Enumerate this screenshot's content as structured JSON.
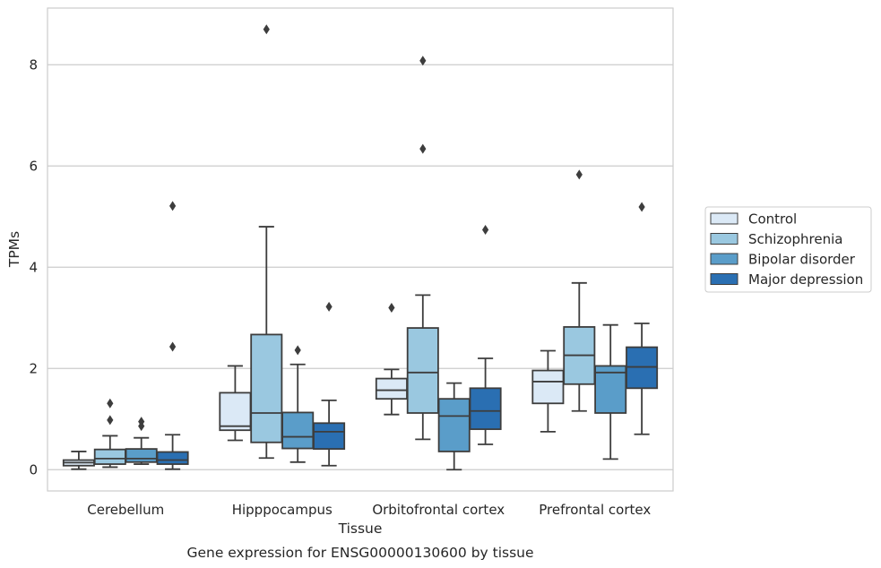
{
  "caption": "Gene expression for ENSG00000130600 by tissue",
  "chart_data": {
    "type": "box",
    "xlabel": "Tissue",
    "ylabel": "TPMs",
    "ylim": [
      -0.42,
      9.12
    ],
    "yticks": [
      0,
      2,
      4,
      6,
      8
    ],
    "grid": true,
    "legend_position": "right",
    "categories": [
      "Cerebellum",
      "Hipppocampus",
      "Orbitofrontal cortex",
      "Prefrontal cortex"
    ],
    "series": [
      {
        "name": "Control",
        "color": "#dbe9f6",
        "boxes": [
          {
            "category": "Cerebellum",
            "whisker_low": 0.01,
            "q1": 0.08,
            "median": 0.14,
            "q3": 0.19,
            "whisker_high": 0.36,
            "outliers": []
          },
          {
            "category": "Hipppocampus",
            "whisker_low": 0.58,
            "q1": 0.78,
            "median": 0.86,
            "q3": 1.52,
            "whisker_high": 2.05,
            "outliers": []
          },
          {
            "category": "Orbitofrontal cortex",
            "whisker_low": 1.09,
            "q1": 1.4,
            "median": 1.57,
            "q3": 1.8,
            "whisker_high": 1.98,
            "outliers": [
              3.2
            ]
          },
          {
            "category": "Prefrontal cortex",
            "whisker_low": 0.75,
            "q1": 1.31,
            "median": 1.74,
            "q3": 1.96,
            "whisker_high": 2.35,
            "outliers": []
          }
        ]
      },
      {
        "name": "Schizophrenia",
        "color": "#9ac8e0",
        "boxes": [
          {
            "category": "Cerebellum",
            "whisker_low": 0.05,
            "q1": 0.11,
            "median": 0.22,
            "q3": 0.4,
            "whisker_high": 0.67,
            "outliers": [
              0.98,
              1.31
            ]
          },
          {
            "category": "Hipppocampus",
            "whisker_low": 0.23,
            "q1": 0.54,
            "median": 1.12,
            "q3": 2.67,
            "whisker_high": 4.8,
            "outliers": [
              8.7
            ]
          },
          {
            "category": "Orbitofrontal cortex",
            "whisker_low": 0.6,
            "q1": 1.12,
            "median": 1.92,
            "q3": 2.8,
            "whisker_high": 3.45,
            "outliers": [
              6.34,
              8.08
            ]
          },
          {
            "category": "Prefrontal cortex",
            "whisker_low": 1.16,
            "q1": 1.69,
            "median": 2.26,
            "q3": 2.82,
            "whisker_high": 3.69,
            "outliers": [
              5.83
            ]
          }
        ]
      },
      {
        "name": "Bipolar disorder",
        "color": "#5a9dc9",
        "boxes": [
          {
            "category": "Cerebellum",
            "whisker_low": 0.11,
            "q1": 0.15,
            "median": 0.22,
            "q3": 0.41,
            "whisker_high": 0.63,
            "outliers": [
              0.86,
              0.95
            ]
          },
          {
            "category": "Hipppocampus",
            "whisker_low": 0.15,
            "q1": 0.42,
            "median": 0.65,
            "q3": 1.13,
            "whisker_high": 2.08,
            "outliers": [
              2.36
            ]
          },
          {
            "category": "Orbitofrontal cortex",
            "whisker_low": 0.0,
            "q1": 0.36,
            "median": 1.06,
            "q3": 1.4,
            "whisker_high": 1.71,
            "outliers": []
          },
          {
            "category": "Prefrontal cortex",
            "whisker_low": 0.21,
            "q1": 1.12,
            "median": 1.92,
            "q3": 2.05,
            "whisker_high": 2.86,
            "outliers": []
          }
        ]
      },
      {
        "name": "Major depression",
        "color": "#2a6fb2",
        "boxes": [
          {
            "category": "Cerebellum",
            "whisker_low": 0.01,
            "q1": 0.11,
            "median": 0.19,
            "q3": 0.35,
            "whisker_high": 0.69,
            "outliers": [
              2.43,
              5.21
            ]
          },
          {
            "category": "Hipppocampus",
            "whisker_low": 0.08,
            "q1": 0.41,
            "median": 0.75,
            "q3": 0.92,
            "whisker_high": 1.37,
            "outliers": [
              3.22
            ]
          },
          {
            "category": "Orbitofrontal cortex",
            "whisker_low": 0.5,
            "q1": 0.8,
            "median": 1.16,
            "q3": 1.61,
            "whisker_high": 2.2,
            "outliers": [
              4.74
            ]
          },
          {
            "category": "Prefrontal cortex",
            "whisker_low": 0.7,
            "q1": 1.61,
            "median": 2.03,
            "q3": 2.42,
            "whisker_high": 2.89,
            "outliers": [
              5.19
            ]
          }
        ]
      }
    ]
  }
}
